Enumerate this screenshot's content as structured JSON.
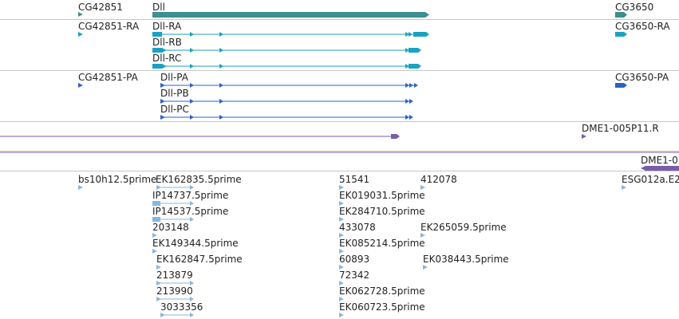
{
  "colors": {
    "gene": "#3d8f91",
    "transcript": "#1aa2c2",
    "protein": "#2a63c8",
    "clone": "#7a5ca8",
    "est": "#87b7df",
    "separator": "#c8c8c8",
    "text": "#222222"
  },
  "tracks": {
    "genes": {
      "items": [
        {
          "label": "CG42851"
        },
        {
          "label": "Dll"
        },
        {
          "label": "CG3650"
        }
      ]
    },
    "transcripts": {
      "items": [
        {
          "label": "CG42851-RA"
        },
        {
          "label": "Dll-RA"
        },
        {
          "label": "Dll-RB"
        },
        {
          "label": "Dll-RC"
        },
        {
          "label": "CG3650-RA"
        }
      ]
    },
    "proteins": {
      "items": [
        {
          "label": "CG42851-PA"
        },
        {
          "label": "Dll-PA"
        },
        {
          "label": "Dll-PB"
        },
        {
          "label": "Dll-PC"
        },
        {
          "label": "CG3650-PA"
        }
      ]
    },
    "clones": {
      "items": [
        {
          "label": "DME1-005P11.R"
        },
        {
          "label": ""
        },
        {
          "label": "DME1-0"
        }
      ]
    },
    "ests": {
      "items": [
        {
          "label": "bs10h12.5prime"
        },
        {
          "label": "EK162835.5prime"
        },
        {
          "label": "IP14737.5prime"
        },
        {
          "label": "IP14537.5prime"
        },
        {
          "label": "203148"
        },
        {
          "label": "EK149344.5prime"
        },
        {
          "label": "EK162847.5prime"
        },
        {
          "label": "213879"
        },
        {
          "label": "213990"
        },
        {
          "label": "3033356"
        },
        {
          "label": "51541"
        },
        {
          "label": "EK019031.5prime"
        },
        {
          "label": "EK284710.5prime"
        },
        {
          "label": "433078"
        },
        {
          "label": "EK085214.5prime"
        },
        {
          "label": "60893"
        },
        {
          "label": "72342"
        },
        {
          "label": "EK062728.5prime"
        },
        {
          "label": "EK060723.5prime"
        },
        {
          "label": "412078"
        },
        {
          "label": "EK265059.5prime"
        },
        {
          "label": "EK038443.5prime"
        },
        {
          "label": "ESG012a.E2"
        }
      ]
    }
  }
}
